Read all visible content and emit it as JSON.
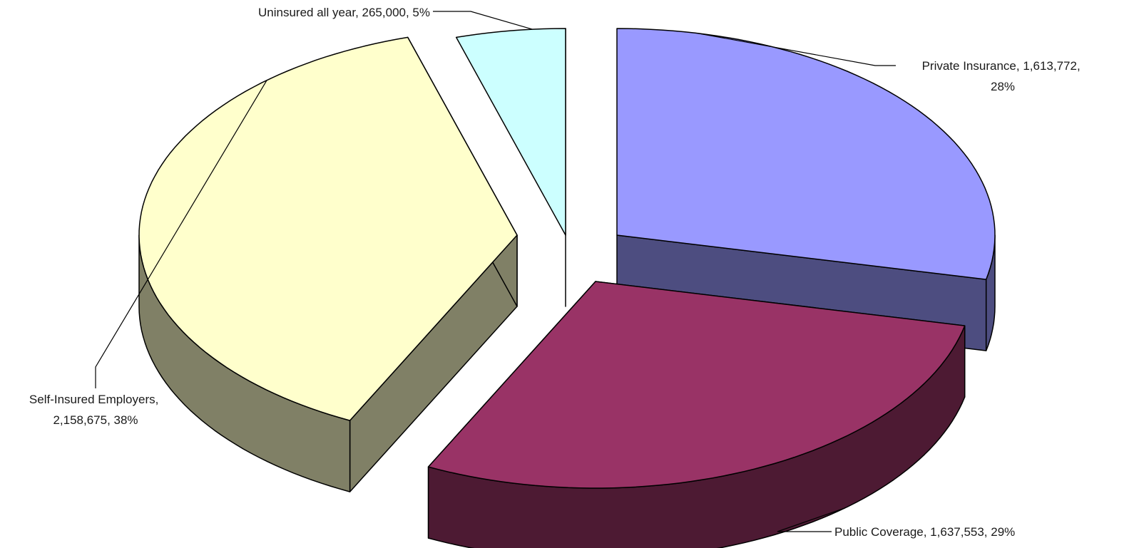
{
  "chart_data": {
    "type": "pie",
    "title": "",
    "three_d": true,
    "exploded": true,
    "slices": [
      {
        "name": "Private Insurance",
        "value": 1613772,
        "percent": 28,
        "label_lines": [
          "Private Insurance, 1,613,772,",
          "28%"
        ],
        "color_top": "#9999FF",
        "color_side": "#4D4D80"
      },
      {
        "name": "Public Coverage",
        "value": 1637553,
        "percent": 29,
        "label_lines": [
          "Public Coverage, 1,637,553, 29%"
        ],
        "color_top": "#993366",
        "color_side": "#4D1A33"
      },
      {
        "name": "Self-Insured Employers",
        "value": 2158675,
        "percent": 38,
        "label_lines": [
          "Self-Insured Employers,",
          "2,158,675, 38%"
        ],
        "color_top": "#FFFFCC",
        "color_side": "#808066"
      },
      {
        "name": "Uninsured all year",
        "value": 265000,
        "percent": 5,
        "label_lines": [
          "Uninsured all year, 265,000, 5%"
        ],
        "color_top": "#CCFFFF",
        "color_side": "#668080"
      }
    ],
    "legend": "none"
  }
}
